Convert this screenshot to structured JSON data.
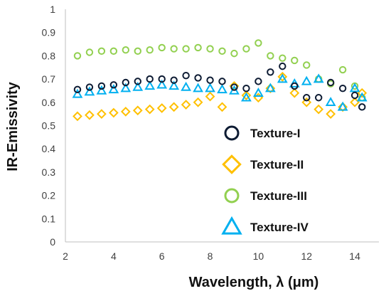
{
  "chart_data": {
    "type": "scatter",
    "title": "",
    "xlabel": "Wavelength, λ (μm)",
    "ylabel": "IR-Emissivity",
    "xlim": [
      2,
      15
    ],
    "ylim": [
      0,
      1
    ],
    "x_ticks": [
      "2",
      "4",
      "6",
      "8",
      "10",
      "12",
      "14"
    ],
    "y_ticks": [
      "0",
      "0.1",
      "0.2",
      "0.3",
      "0.4",
      "0.5",
      "0.6",
      "0.7",
      "0.8",
      "0.9",
      "1"
    ],
    "grid": false,
    "legend_position": "bottom-right",
    "series": [
      {
        "name": "Texture-I",
        "color": "#0d1b33",
        "marker": "circle",
        "x": [
          2.5,
          3,
          3.5,
          4,
          4.5,
          5,
          5.5,
          6,
          6.5,
          7,
          7.5,
          8,
          8.5,
          9,
          9.5,
          10,
          10.5,
          11,
          11.5,
          12,
          12.5,
          13,
          13.5,
          14,
          14.3
        ],
        "y": [
          0.655,
          0.665,
          0.67,
          0.675,
          0.685,
          0.69,
          0.7,
          0.7,
          0.695,
          0.715,
          0.705,
          0.695,
          0.69,
          0.665,
          0.66,
          0.69,
          0.73,
          0.755,
          0.67,
          0.62,
          0.62,
          0.685,
          0.66,
          0.63,
          0.58
        ]
      },
      {
        "name": "Texture-II",
        "color": "#ffc000",
        "marker": "diamond",
        "x": [
          2.5,
          3,
          3.5,
          4,
          4.5,
          5,
          5.5,
          6,
          6.5,
          7,
          7.5,
          8,
          8.5,
          9,
          9.5,
          10,
          10.5,
          11,
          11.5,
          12,
          12.5,
          13,
          13.5,
          14,
          14.3
        ],
        "y": [
          0.54,
          0.545,
          0.55,
          0.555,
          0.56,
          0.565,
          0.57,
          0.575,
          0.58,
          0.59,
          0.6,
          0.625,
          0.58,
          0.67,
          0.63,
          0.62,
          0.66,
          0.71,
          0.64,
          0.6,
          0.57,
          0.55,
          0.58,
          0.6,
          0.64
        ]
      },
      {
        "name": "Texture-III",
        "color": "#92d050",
        "marker": "circle",
        "x": [
          2.5,
          3,
          3.5,
          4,
          4.5,
          5,
          5.5,
          6,
          6.5,
          7,
          7.5,
          8,
          8.5,
          9,
          9.5,
          10,
          10.5,
          11,
          11.5,
          12,
          12.5,
          13,
          13.5,
          14,
          14.3
        ],
        "y": [
          0.8,
          0.815,
          0.82,
          0.82,
          0.825,
          0.82,
          0.825,
          0.835,
          0.83,
          0.83,
          0.835,
          0.83,
          0.82,
          0.81,
          0.83,
          0.855,
          0.8,
          0.79,
          0.78,
          0.76,
          0.7,
          0.68,
          0.74,
          0.67,
          0.62
        ]
      },
      {
        "name": "Texture-IV",
        "color": "#00b0f0",
        "marker": "triangle",
        "x": [
          2.5,
          3,
          3.5,
          4,
          4.5,
          5,
          5.5,
          6,
          6.5,
          7,
          7.5,
          8,
          8.5,
          9,
          9.5,
          10,
          10.5,
          11,
          11.5,
          12,
          12.5,
          13,
          13.5,
          14,
          14.3
        ],
        "y": [
          0.635,
          0.645,
          0.65,
          0.655,
          0.66,
          0.665,
          0.67,
          0.675,
          0.67,
          0.665,
          0.66,
          0.66,
          0.655,
          0.65,
          0.62,
          0.64,
          0.66,
          0.7,
          0.68,
          0.69,
          0.7,
          0.6,
          0.58,
          0.66,
          0.62
        ]
      }
    ]
  }
}
